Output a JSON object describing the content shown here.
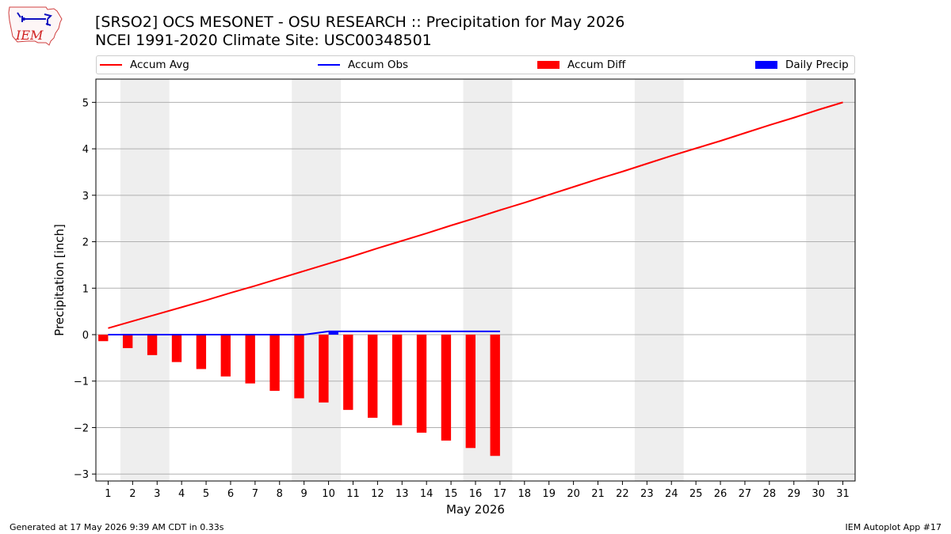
{
  "title_line1": "[SRSO2] OCS MESONET - OSU RESEARCH :: Precipitation for May 2026",
  "title_line2": "NCEI 1991-2020 Climate Site: USC00348501",
  "logo_text": "IEM",
  "footer_left": "Generated at 17 May 2026 9:39 AM CDT in 0.33s",
  "footer_right": "IEM Autoplot App #17",
  "legend": [
    {
      "label": "Accum Avg",
      "kind": "line",
      "color": "#ff0000"
    },
    {
      "label": "Accum Obs",
      "kind": "line",
      "color": "#0000ff"
    },
    {
      "label": "Accum Diff",
      "kind": "box",
      "color": "#ff0000"
    },
    {
      "label": "Daily Precip",
      "kind": "box",
      "color": "#0000ff"
    }
  ],
  "chart_data": {
    "type": "bar",
    "xlabel": "May 2026",
    "ylabel": "Precipitation [inch]",
    "x": [
      1,
      2,
      3,
      4,
      5,
      6,
      7,
      8,
      9,
      10,
      11,
      12,
      13,
      14,
      15,
      16,
      17,
      18,
      19,
      20,
      21,
      22,
      23,
      24,
      25,
      26,
      27,
      28,
      29,
      30,
      31
    ],
    "xlim": [
      0.5,
      31.5
    ],
    "ylim": [
      -3.15,
      5.5
    ],
    "yticks": [
      -3,
      -2,
      -1,
      0,
      1,
      2,
      3,
      4,
      5
    ],
    "ytick_labels": [
      "−3",
      "−2",
      "−1",
      "0",
      "1",
      "2",
      "3",
      "4",
      "5"
    ],
    "grid": "horizontal",
    "weekend_shading": [
      [
        1.5,
        3.5
      ],
      [
        8.5,
        10.5
      ],
      [
        15.5,
        17.5
      ],
      [
        22.5,
        24.5
      ],
      [
        29.5,
        31.5
      ]
    ],
    "series": [
      {
        "name": "Accum Avg",
        "kind": "line",
        "color": "#ff0000",
        "x": [
          1,
          2,
          3,
          4,
          5,
          6,
          7,
          8,
          9,
          10,
          11,
          12,
          13,
          14,
          15,
          16,
          17,
          18,
          19,
          20,
          21,
          22,
          23,
          24,
          25,
          26,
          27,
          28,
          29,
          30,
          31
        ],
        "values": [
          0.14,
          0.29,
          0.44,
          0.59,
          0.74,
          0.9,
          1.05,
          1.21,
          1.37,
          1.53,
          1.69,
          1.86,
          2.02,
          2.18,
          2.35,
          2.51,
          2.68,
          2.84,
          3.01,
          3.18,
          3.35,
          3.51,
          3.68,
          3.85,
          4.01,
          4.17,
          4.34,
          4.51,
          4.67,
          4.84,
          5.0
        ]
      },
      {
        "name": "Accum Obs",
        "kind": "line",
        "color": "#0000ff",
        "x": [
          1,
          2,
          3,
          4,
          5,
          6,
          7,
          8,
          9,
          10,
          11,
          12,
          13,
          14,
          15,
          16,
          17
        ],
        "values": [
          0,
          0,
          0,
          0,
          0,
          0,
          0,
          0,
          0,
          0.07,
          0.07,
          0.07,
          0.07,
          0.07,
          0.07,
          0.07,
          0.07
        ]
      },
      {
        "name": "Accum Diff",
        "kind": "bar",
        "color": "#ff0000",
        "offset": -0.2,
        "x": [
          1,
          2,
          3,
          4,
          5,
          6,
          7,
          8,
          9,
          10,
          11,
          12,
          13,
          14,
          15,
          16,
          17
        ],
        "values": [
          -0.14,
          -0.29,
          -0.44,
          -0.59,
          -0.74,
          -0.9,
          -1.05,
          -1.21,
          -1.37,
          -1.46,
          -1.62,
          -1.79,
          -1.95,
          -2.11,
          -2.28,
          -2.44,
          -2.61
        ]
      },
      {
        "name": "Daily Precip",
        "kind": "bar",
        "color": "#0000ff",
        "offset": 0.2,
        "x": [
          10
        ],
        "values": [
          0.07
        ]
      }
    ]
  }
}
